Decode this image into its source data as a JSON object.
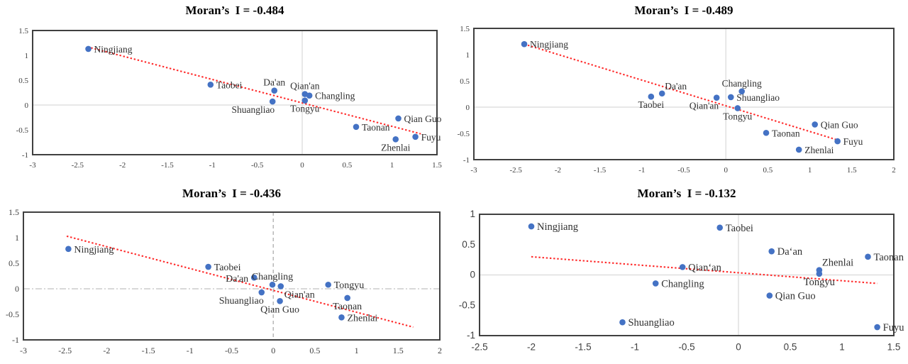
{
  "colors": {
    "point": "#4472C4",
    "trend": "#FF2B2B",
    "frame": "#404040",
    "grid_solid": "#D9D9D9",
    "grid_dashed": "#A6A6A6",
    "grid_dashdot": "#C0C0C0",
    "tick": "#404040",
    "label": "#303030",
    "title": "#000000"
  },
  "chart_data": [
    {
      "type": "scatter",
      "title": "Moran’s  I = -0.484",
      "xlim": [
        -3,
        1.5
      ],
      "ylim": [
        -1,
        1.5
      ],
      "xticks": [
        -3,
        -2.5,
        -2,
        -1.5,
        -1,
        -0.5,
        0,
        0.5,
        1,
        1.5
      ],
      "yticks": [
        -1,
        -0.5,
        0,
        0.5,
        1,
        1.5
      ],
      "zero_lines": {
        "v": "solid",
        "h": "solid"
      },
      "trend": {
        "x1": -2.39,
        "y1": 1.17,
        "x2": 1.32,
        "y2": -0.58
      },
      "points": [
        {
          "name": "Ningjiang",
          "x": -2.38,
          "y": 1.13,
          "label_pos": "right"
        },
        {
          "name": "Taobei",
          "x": -1.02,
          "y": 0.41,
          "label_pos": "right"
        },
        {
          "name": "Da'an",
          "x": -0.31,
          "y": 0.29,
          "label_pos": "above"
        },
        {
          "name": "Shuangliao",
          "x": -0.33,
          "y": 0.07,
          "label_pos": "below-left"
        },
        {
          "name": "Qian'an",
          "x": 0.03,
          "y": 0.22,
          "label_pos": "above"
        },
        {
          "name": "Changling",
          "x": 0.08,
          "y": 0.19,
          "label_pos": "right"
        },
        {
          "name": "Tongyu",
          "x": 0.03,
          "y": 0.09,
          "label_pos": "below"
        },
        {
          "name": "Qian Guo",
          "x": 1.07,
          "y": -0.27,
          "label_pos": "right"
        },
        {
          "name": "Taonan",
          "x": 0.6,
          "y": -0.44,
          "label_pos": "right"
        },
        {
          "name": "Zhenlai",
          "x": 1.04,
          "y": -0.69,
          "label_pos": "below"
        },
        {
          "name": "Fuyu",
          "x": 1.26,
          "y": -0.64,
          "label_pos": "right"
        }
      ]
    },
    {
      "type": "scatter",
      "title": "Moran’s  I = -0.489",
      "xlim": [
        -3,
        2
      ],
      "ylim": [
        -1,
        1.5
      ],
      "xticks": [
        -3,
        -2.5,
        -2,
        -1.5,
        -1,
        -0.5,
        0,
        0.5,
        1,
        1.5,
        2
      ],
      "yticks": [
        -1,
        -0.5,
        0,
        0.5,
        1,
        1.5
      ],
      "zero_lines": {
        "v": "solid",
        "h": "solid"
      },
      "trend": {
        "x1": -2.4,
        "y1": 1.2,
        "x2": 1.36,
        "y2": -0.64
      },
      "points": [
        {
          "name": "Ningjiang",
          "x": -2.4,
          "y": 1.2,
          "label_pos": "right"
        },
        {
          "name": "Taobei",
          "x": -0.89,
          "y": 0.2,
          "label_pos": "below"
        },
        {
          "name": "Da'an",
          "x": -0.76,
          "y": 0.26,
          "label_pos": "above-right"
        },
        {
          "name": "Qian'an",
          "x": -0.11,
          "y": 0.18,
          "label_pos": "below-left"
        },
        {
          "name": "Shuangliao",
          "x": 0.06,
          "y": 0.19,
          "label_pos": "right"
        },
        {
          "name": "Changling",
          "x": 0.19,
          "y": 0.3,
          "label_pos": "above"
        },
        {
          "name": "Tongyu",
          "x": 0.14,
          "y": -0.02,
          "label_pos": "below"
        },
        {
          "name": "Taonan",
          "x": 0.48,
          "y": -0.49,
          "label_pos": "right"
        },
        {
          "name": "Qian Guo",
          "x": 1.06,
          "y": -0.33,
          "label_pos": "right"
        },
        {
          "name": "Zhenlai",
          "x": 0.87,
          "y": -0.81,
          "label_pos": "right"
        },
        {
          "name": "Fuyu",
          "x": 1.33,
          "y": -0.65,
          "label_pos": "right"
        }
      ]
    },
    {
      "type": "scatter",
      "title": "Moran’s  I = -0.436",
      "xlim": [
        -3,
        2
      ],
      "ylim": [
        -1,
        1.5
      ],
      "xticks": [
        -3,
        -2.5,
        -2,
        -1.5,
        -1,
        -0.5,
        0,
        0.5,
        1,
        1.5,
        2
      ],
      "yticks": [
        -1,
        -0.5,
        0,
        0.5,
        1,
        1.5
      ],
      "zero_lines": {
        "v": "dashed",
        "h": "dashdot"
      },
      "trend": {
        "x1": -2.48,
        "y1": 1.03,
        "x2": 1.68,
        "y2": -0.75
      },
      "points": [
        {
          "name": "Ningjiang",
          "x": -2.46,
          "y": 0.78,
          "label_pos": "right"
        },
        {
          "name": "Taobei",
          "x": -0.78,
          "y": 0.43,
          "label_pos": "right"
        },
        {
          "name": "Da'an",
          "x": -0.23,
          "y": 0.22,
          "label_pos": "left"
        },
        {
          "name": "Shuangliao",
          "x": -0.14,
          "y": -0.07,
          "label_pos": "below-left"
        },
        {
          "name": "Changling",
          "x": -0.01,
          "y": 0.08,
          "label_pos": "above"
        },
        {
          "name": "Qian'an",
          "x": 0.09,
          "y": 0.05,
          "label_pos": "below-right"
        },
        {
          "name": "Qian Guo",
          "x": 0.08,
          "y": -0.24,
          "label_pos": "below"
        },
        {
          "name": "Tongyu",
          "x": 0.66,
          "y": 0.08,
          "label_pos": "right"
        },
        {
          "name": "Taonan",
          "x": 0.89,
          "y": -0.18,
          "label_pos": "below"
        },
        {
          "name": "Zhenlai",
          "x": 0.82,
          "y": -0.56,
          "label_pos": "right"
        }
      ]
    },
    {
      "type": "scatter",
      "title": "Moran’s  I = -0.132",
      "xlim": [
        -2.5,
        1.5
      ],
      "ylim": [
        -1,
        1
      ],
      "xticks": [
        -2.5,
        -2,
        -1.5,
        -1,
        -0.5,
        0,
        0.5,
        1,
        1.5
      ],
      "yticks": [
        -1,
        -0.5,
        0,
        0.5,
        1
      ],
      "zero_lines": {
        "v": "solid",
        "h": "solid"
      },
      "trend": {
        "x1": -2.0,
        "y1": 0.3,
        "x2": 1.34,
        "y2": -0.14
      },
      "points": [
        {
          "name": "Ningjiang",
          "x": -2.0,
          "y": 0.8,
          "label_pos": "right"
        },
        {
          "name": "Taobei",
          "x": -0.18,
          "y": 0.78,
          "label_pos": "right"
        },
        {
          "name": "Da‘an",
          "x": 0.32,
          "y": 0.39,
          "label_pos": "right"
        },
        {
          "name": "Qian‘an",
          "x": -0.54,
          "y": 0.13,
          "label_pos": "right"
        },
        {
          "name": "Changling",
          "x": -0.8,
          "y": -0.14,
          "label_pos": "right"
        },
        {
          "name": "Shuangliao",
          "x": -1.12,
          "y": -0.78,
          "label_pos": "right"
        },
        {
          "name": "Qian Guo",
          "x": 0.3,
          "y": -0.34,
          "label_pos": "right"
        },
        {
          "name": "Zhenlai",
          "x": 0.78,
          "y": 0.08,
          "label_pos": "above-right"
        },
        {
          "name": "Tongyu",
          "x": 0.78,
          "y": 0.02,
          "label_pos": "below"
        },
        {
          "name": "Taonan",
          "x": 1.25,
          "y": 0.3,
          "label_pos": "right"
        },
        {
          "name": "Fuyu",
          "x": 1.34,
          "y": -0.86,
          "label_pos": "right"
        }
      ]
    }
  ]
}
